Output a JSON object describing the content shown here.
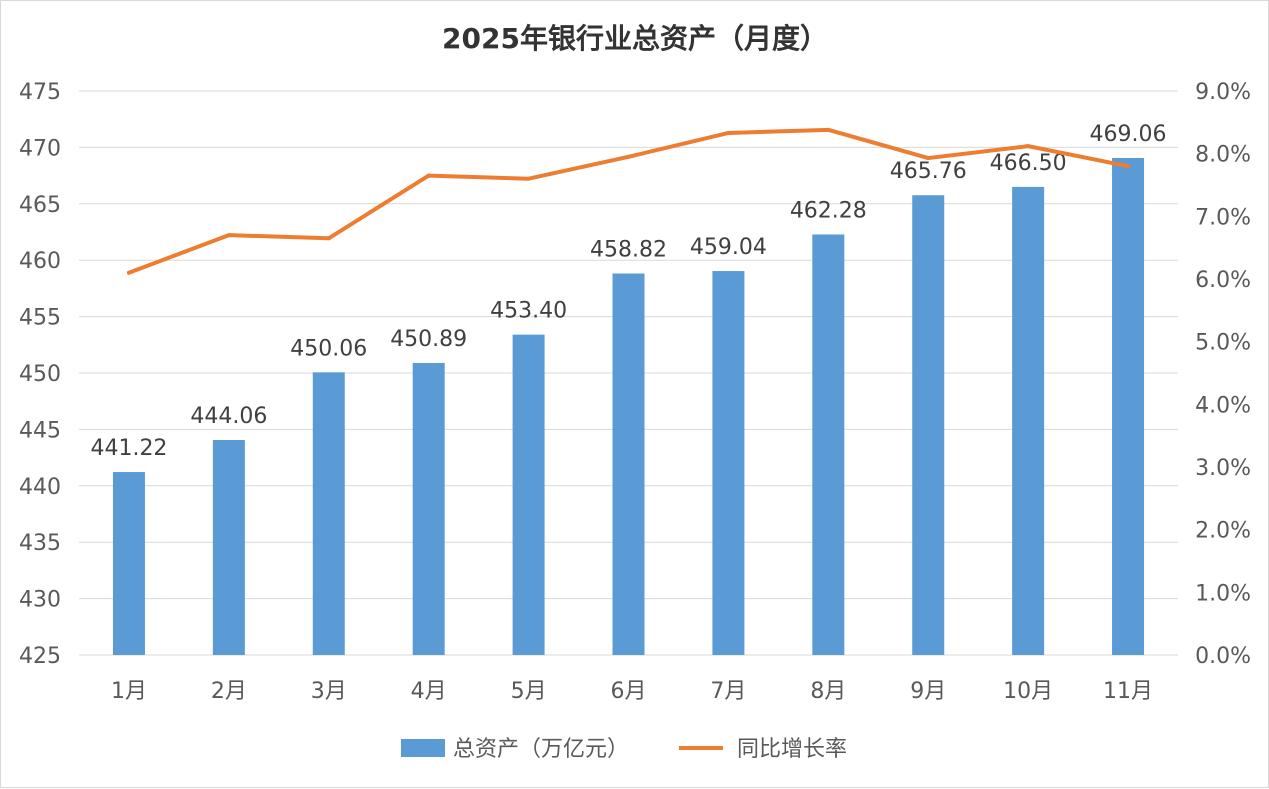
{
  "chart_data": {
    "type": "bar",
    "title": "2025年银行业总资产（月度）",
    "categories": [
      "1月",
      "2月",
      "3月",
      "4月",
      "5月",
      "6月",
      "7月",
      "8月",
      "9月",
      "10月",
      "11月"
    ],
    "series": [
      {
        "name": "总资产（万亿元）",
        "type": "bar",
        "axis": "left",
        "values": [
          441.22,
          444.06,
          450.06,
          450.89,
          453.4,
          458.82,
          459.04,
          462.28,
          465.76,
          466.5,
          469.06
        ],
        "labels": [
          "441.22",
          "444.06",
          "450.06",
          "450.89",
          "453.40",
          "458.82",
          "459.04",
          "462.28",
          "465.76",
          "466.50",
          "469.06"
        ]
      },
      {
        "name": "同比增长率",
        "type": "line",
        "axis": "right",
        "values": [
          6.1,
          6.7,
          6.65,
          7.65,
          7.6,
          7.95,
          8.33,
          8.38,
          7.93,
          8.12,
          7.8
        ]
      }
    ],
    "y_left": {
      "min": 425,
      "max": 475,
      "step": 5,
      "ticks": [
        "425",
        "430",
        "435",
        "440",
        "445",
        "450",
        "455",
        "460",
        "465",
        "470",
        "475"
      ]
    },
    "y_right": {
      "min": 0,
      "max": 9,
      "step": 1,
      "ticks": [
        "0.0%",
        "1.0%",
        "2.0%",
        "3.0%",
        "4.0%",
        "5.0%",
        "6.0%",
        "7.0%",
        "8.0%",
        "9.0%"
      ]
    },
    "grid": true,
    "legend_position": "bottom",
    "colors": {
      "bar": "#5b9bd5",
      "line": "#ed7d31",
      "grid": "#d9d9d9",
      "text": "#595959"
    }
  }
}
